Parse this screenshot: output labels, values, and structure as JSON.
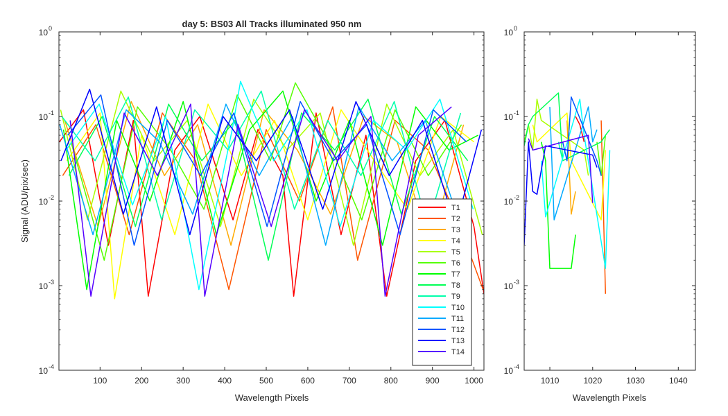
{
  "chart_data": [
    {
      "type": "line",
      "title": "day 5: BS03   All Tracks illuminated   950 nm",
      "xlabel": "Wavelength Pixels",
      "ylabel": "Signal (ADU/pix/sec)",
      "xlim": [
        1,
        1024
      ],
      "ylim": [
        0.0001,
        1
      ],
      "yscale": "log",
      "xticks": [
        100,
        200,
        300,
        400,
        500,
        600,
        700,
        800,
        900,
        1000
      ],
      "yticks": [
        {
          "value": 0.0001,
          "label": "10",
          "exp": "-4"
        },
        {
          "value": 0.001,
          "label": "10",
          "exp": "-3"
        },
        {
          "value": 0.01,
          "label": "10",
          "exp": "-2"
        },
        {
          "value": 0.1,
          "label": "10",
          "exp": "-1"
        },
        {
          "value": 1,
          "label": "10",
          "exp": "0"
        }
      ],
      "grid": false,
      "legend_position": "bottom-right",
      "series": [
        {
          "name": "T1",
          "color": "#ff0000",
          "x": [
            2,
            60,
            120,
            180,
            216,
            280,
            340,
            420,
            480,
            540,
            566,
            620,
            680,
            740,
            790,
            860,
            930,
            1000,
            1024
          ],
          "values": [
            0.05,
            0.12,
            0.003,
            0.09,
            0.00075,
            0.04,
            0.1,
            0.006,
            0.07,
            0.02,
            0.00075,
            0.11,
            0.004,
            0.06,
            0.00075,
            0.03,
            0.09,
            0.005,
            0.0008
          ]
        },
        {
          "name": "T2",
          "color": "#ff5500",
          "x": [
            10,
            90,
            170,
            250,
            330,
            410,
            500,
            580,
            660,
            720,
            810,
            890,
            960,
            1022
          ],
          "values": [
            0.02,
            0.08,
            0.004,
            0.11,
            0.03,
            0.0009,
            0.07,
            0.01,
            0.13,
            0.002,
            0.09,
            0.04,
            0.006,
            0.0009
          ]
        },
        {
          "name": "T3",
          "color": "#ffaa00",
          "x": [
            15,
            95,
            175,
            255,
            335,
            415,
            495,
            575,
            655,
            735,
            815,
            895,
            975
          ],
          "values": [
            0.09,
            0.005,
            0.15,
            0.02,
            0.08,
            0.003,
            0.12,
            0.04,
            0.007,
            0.1,
            0.05,
            0.003,
            0.08
          ]
        },
        {
          "name": "T4",
          "color": "#ffff00",
          "x": [
            20,
            100,
            135,
            200,
            280,
            360,
            440,
            520,
            600,
            680,
            760,
            840,
            920,
            1000
          ],
          "values": [
            0.03,
            0.11,
            0.0007,
            0.06,
            0.004,
            0.14,
            0.02,
            0.09,
            0.006,
            0.12,
            0.03,
            0.008,
            0.1,
            0.05
          ]
        },
        {
          "name": "T5",
          "color": "#aaff00",
          "x": [
            5,
            70,
            150,
            230,
            310,
            390,
            470,
            550,
            630,
            710,
            790,
            870,
            950,
            1020
          ],
          "values": [
            0.12,
            0.006,
            0.2,
            0.03,
            0.09,
            0.005,
            0.16,
            0.04,
            0.11,
            0.003,
            0.14,
            0.02,
            0.07,
            0.004
          ]
        },
        {
          "name": "T6",
          "color": "#55ff00",
          "x": [
            30,
            110,
            190,
            270,
            350,
            430,
            510,
            570,
            650,
            730,
            810,
            890,
            970
          ],
          "values": [
            0.05,
            0.002,
            0.13,
            0.04,
            0.008,
            0.18,
            0.03,
            0.25,
            0.05,
            0.006,
            0.12,
            0.02,
            0.08
          ]
        },
        {
          "name": "T7",
          "color": "#00ff00",
          "x": [
            12,
            68,
            140,
            220,
            300,
            380,
            460,
            540,
            620,
            700,
            780,
            860,
            940,
            1010
          ],
          "values": [
            0.07,
            0.0009,
            0.09,
            0.01,
            0.15,
            0.004,
            0.07,
            0.2,
            0.01,
            0.09,
            0.003,
            0.13,
            0.04,
            0.06
          ]
        },
        {
          "name": "T8",
          "color": "#00ff55",
          "x": [
            25,
            105,
            185,
            265,
            345,
            425,
            505,
            585,
            665,
            745,
            825,
            905,
            985
          ],
          "values": [
            0.02,
            0.1,
            0.005,
            0.14,
            0.03,
            0.09,
            0.002,
            0.11,
            0.04,
            0.16,
            0.007,
            0.1,
            0.03
          ]
        },
        {
          "name": "T9",
          "color": "#00ffaa",
          "x": [
            8,
            88,
            168,
            248,
            328,
            408,
            488,
            568,
            648,
            728,
            808,
            888,
            968
          ],
          "values": [
            0.1,
            0.03,
            0.17,
            0.006,
            0.12,
            0.04,
            0.2,
            0.008,
            0.09,
            0.02,
            0.15,
            0.005,
            0.11
          ]
        },
        {
          "name": "T10",
          "color": "#00ffff",
          "x": [
            18,
            98,
            178,
            258,
            338,
            418,
            438,
            518,
            598,
            678,
            758,
            838,
            918,
            998
          ],
          "values": [
            0.04,
            0.14,
            0.009,
            0.1,
            0.0009,
            0.07,
            0.26,
            0.03,
            0.12,
            0.005,
            0.09,
            0.04,
            0.16,
            0.008
          ]
        },
        {
          "name": "T11",
          "color": "#00aaff",
          "x": [
            3,
            83,
            163,
            243,
            323,
            403,
            483,
            563,
            643,
            723,
            803,
            883,
            963
          ],
          "values": [
            0.08,
            0.004,
            0.12,
            0.05,
            0.007,
            0.14,
            0.02,
            0.1,
            0.003,
            0.13,
            0.03,
            0.09,
            0.006
          ]
        },
        {
          "name": "T12",
          "color": "#0055ff",
          "x": [
            22,
            102,
            182,
            262,
            342,
            422,
            502,
            582,
            662,
            742,
            822,
            902,
            982
          ],
          "values": [
            0.06,
            0.18,
            0.003,
            0.09,
            0.02,
            0.11,
            0.005,
            0.15,
            0.03,
            0.08,
            0.004,
            0.12,
            0.05
          ]
        },
        {
          "name": "T13",
          "color": "#0000ff",
          "x": [
            6,
            75,
            156,
            236,
            316,
            396,
            476,
            556,
            636,
            716,
            796,
            876,
            956,
            1018
          ],
          "values": [
            0.03,
            0.21,
            0.007,
            0.13,
            0.004,
            0.1,
            0.03,
            0.12,
            0.008,
            0.15,
            0.02,
            0.09,
            0.005,
            0.07
          ]
        },
        {
          "name": "T14",
          "color": "#5500ff",
          "x": [
            28,
            78,
            158,
            238,
            318,
            352,
            432,
            512,
            592,
            672,
            752,
            786,
            866,
            946
          ],
          "values": [
            0.09,
            0.00075,
            0.11,
            0.02,
            0.14,
            0.00075,
            0.08,
            0.005,
            0.12,
            0.03,
            0.1,
            0.00075,
            0.06,
            0.13
          ]
        }
      ]
    },
    {
      "type": "line",
      "xlabel": "Wavelength Pixels",
      "xlim": [
        1004,
        1044
      ],
      "ylim": [
        0.0001,
        1
      ],
      "yscale": "log",
      "xticks": [
        1010,
        1020,
        1030,
        1040
      ],
      "yticks": [
        {
          "value": 0.0001,
          "label": "10",
          "exp": "-4"
        },
        {
          "value": 0.001,
          "label": "10",
          "exp": "-3"
        },
        {
          "value": 0.01,
          "label": "10",
          "exp": "-2"
        },
        {
          "value": 0.1,
          "label": "10",
          "exp": "-1"
        },
        {
          "value": 1,
          "label": "10",
          "exp": "0"
        }
      ],
      "grid": false,
      "series": [
        {
          "name": "T1",
          "color": "#ff0000",
          "x": [
            1016,
            1017,
            1018
          ],
          "values": [
            0.1,
            0.08,
            0.05
          ]
        },
        {
          "name": "T2",
          "color": "#ff5500",
          "x": [
            1022,
            1023
          ],
          "values": [
            0.09,
            0.0008
          ]
        },
        {
          "name": "T3",
          "color": "#ffaa00",
          "x": [
            1014,
            1015,
            1016
          ],
          "values": [
            0.09,
            0.007,
            0.013
          ]
        },
        {
          "name": "T4",
          "color": "#ffff00",
          "x": [
            1006,
            1007,
            1014,
            1015,
            1022,
            1023
          ],
          "values": [
            0.08,
            0.05,
            0.11,
            0.03,
            0.006,
            0.04
          ]
        },
        {
          "name": "T5",
          "color": "#aaff00",
          "x": [
            1004,
            1005,
            1006,
            1007,
            1008,
            1018,
            1019
          ],
          "values": [
            0.05,
            0.08,
            0.04,
            0.16,
            0.09,
            0.04,
            0.02
          ]
        },
        {
          "name": "T6",
          "color": "#55ff00",
          "x": [
            1021,
            1022,
            1023
          ],
          "values": [
            0.05,
            0.02,
            0.06
          ]
        },
        {
          "name": "T7",
          "color": "#00ff00",
          "x": [
            1008,
            1009,
            1010,
            1015,
            1016
          ],
          "values": [
            0.05,
            0.03,
            0.0016,
            0.0016,
            0.004
          ]
        },
        {
          "name": "T8",
          "color": "#00ff55",
          "x": [
            1004,
            1005,
            1006,
            1012,
            1013,
            1022,
            1023,
            1024
          ],
          "values": [
            0.045,
            0.08,
            0.1,
            0.19,
            0.03,
            0.05,
            0.06,
            0.07
          ]
        },
        {
          "name": "T9",
          "color": "#00ffaa",
          "x": [
            1012,
            1013
          ],
          "values": [
            0.05,
            0.03
          ]
        },
        {
          "name": "T10",
          "color": "#00ffff",
          "x": [
            1008,
            1009,
            1017,
            1018,
            1023,
            1024
          ],
          "values": [
            0.03,
            0.0065,
            0.16,
            0.06,
            0.0016,
            0.04
          ]
        },
        {
          "name": "T11",
          "color": "#00aaff",
          "x": [
            1010,
            1011,
            1019,
            1020,
            1021
          ],
          "values": [
            0.13,
            0.006,
            0.13,
            0.05,
            0.07
          ]
        },
        {
          "name": "T12",
          "color": "#0055ff",
          "x": [
            1013,
            1014,
            1015,
            1021,
            1022
          ],
          "values": [
            0.05,
            0.03,
            0.17,
            0.03,
            0.02
          ]
        },
        {
          "name": "T13",
          "color": "#0000ff",
          "x": [
            1004,
            1005,
            1006,
            1007,
            1009,
            1020,
            1021
          ],
          "values": [
            0.003,
            0.05,
            0.013,
            0.012,
            0.045,
            0.035,
            0.025
          ]
        },
        {
          "name": "T14",
          "color": "#5500ff",
          "x": [
            1005,
            1006,
            1019,
            1020
          ],
          "values": [
            0.055,
            0.04,
            0.06,
            0.0095
          ]
        }
      ]
    }
  ]
}
